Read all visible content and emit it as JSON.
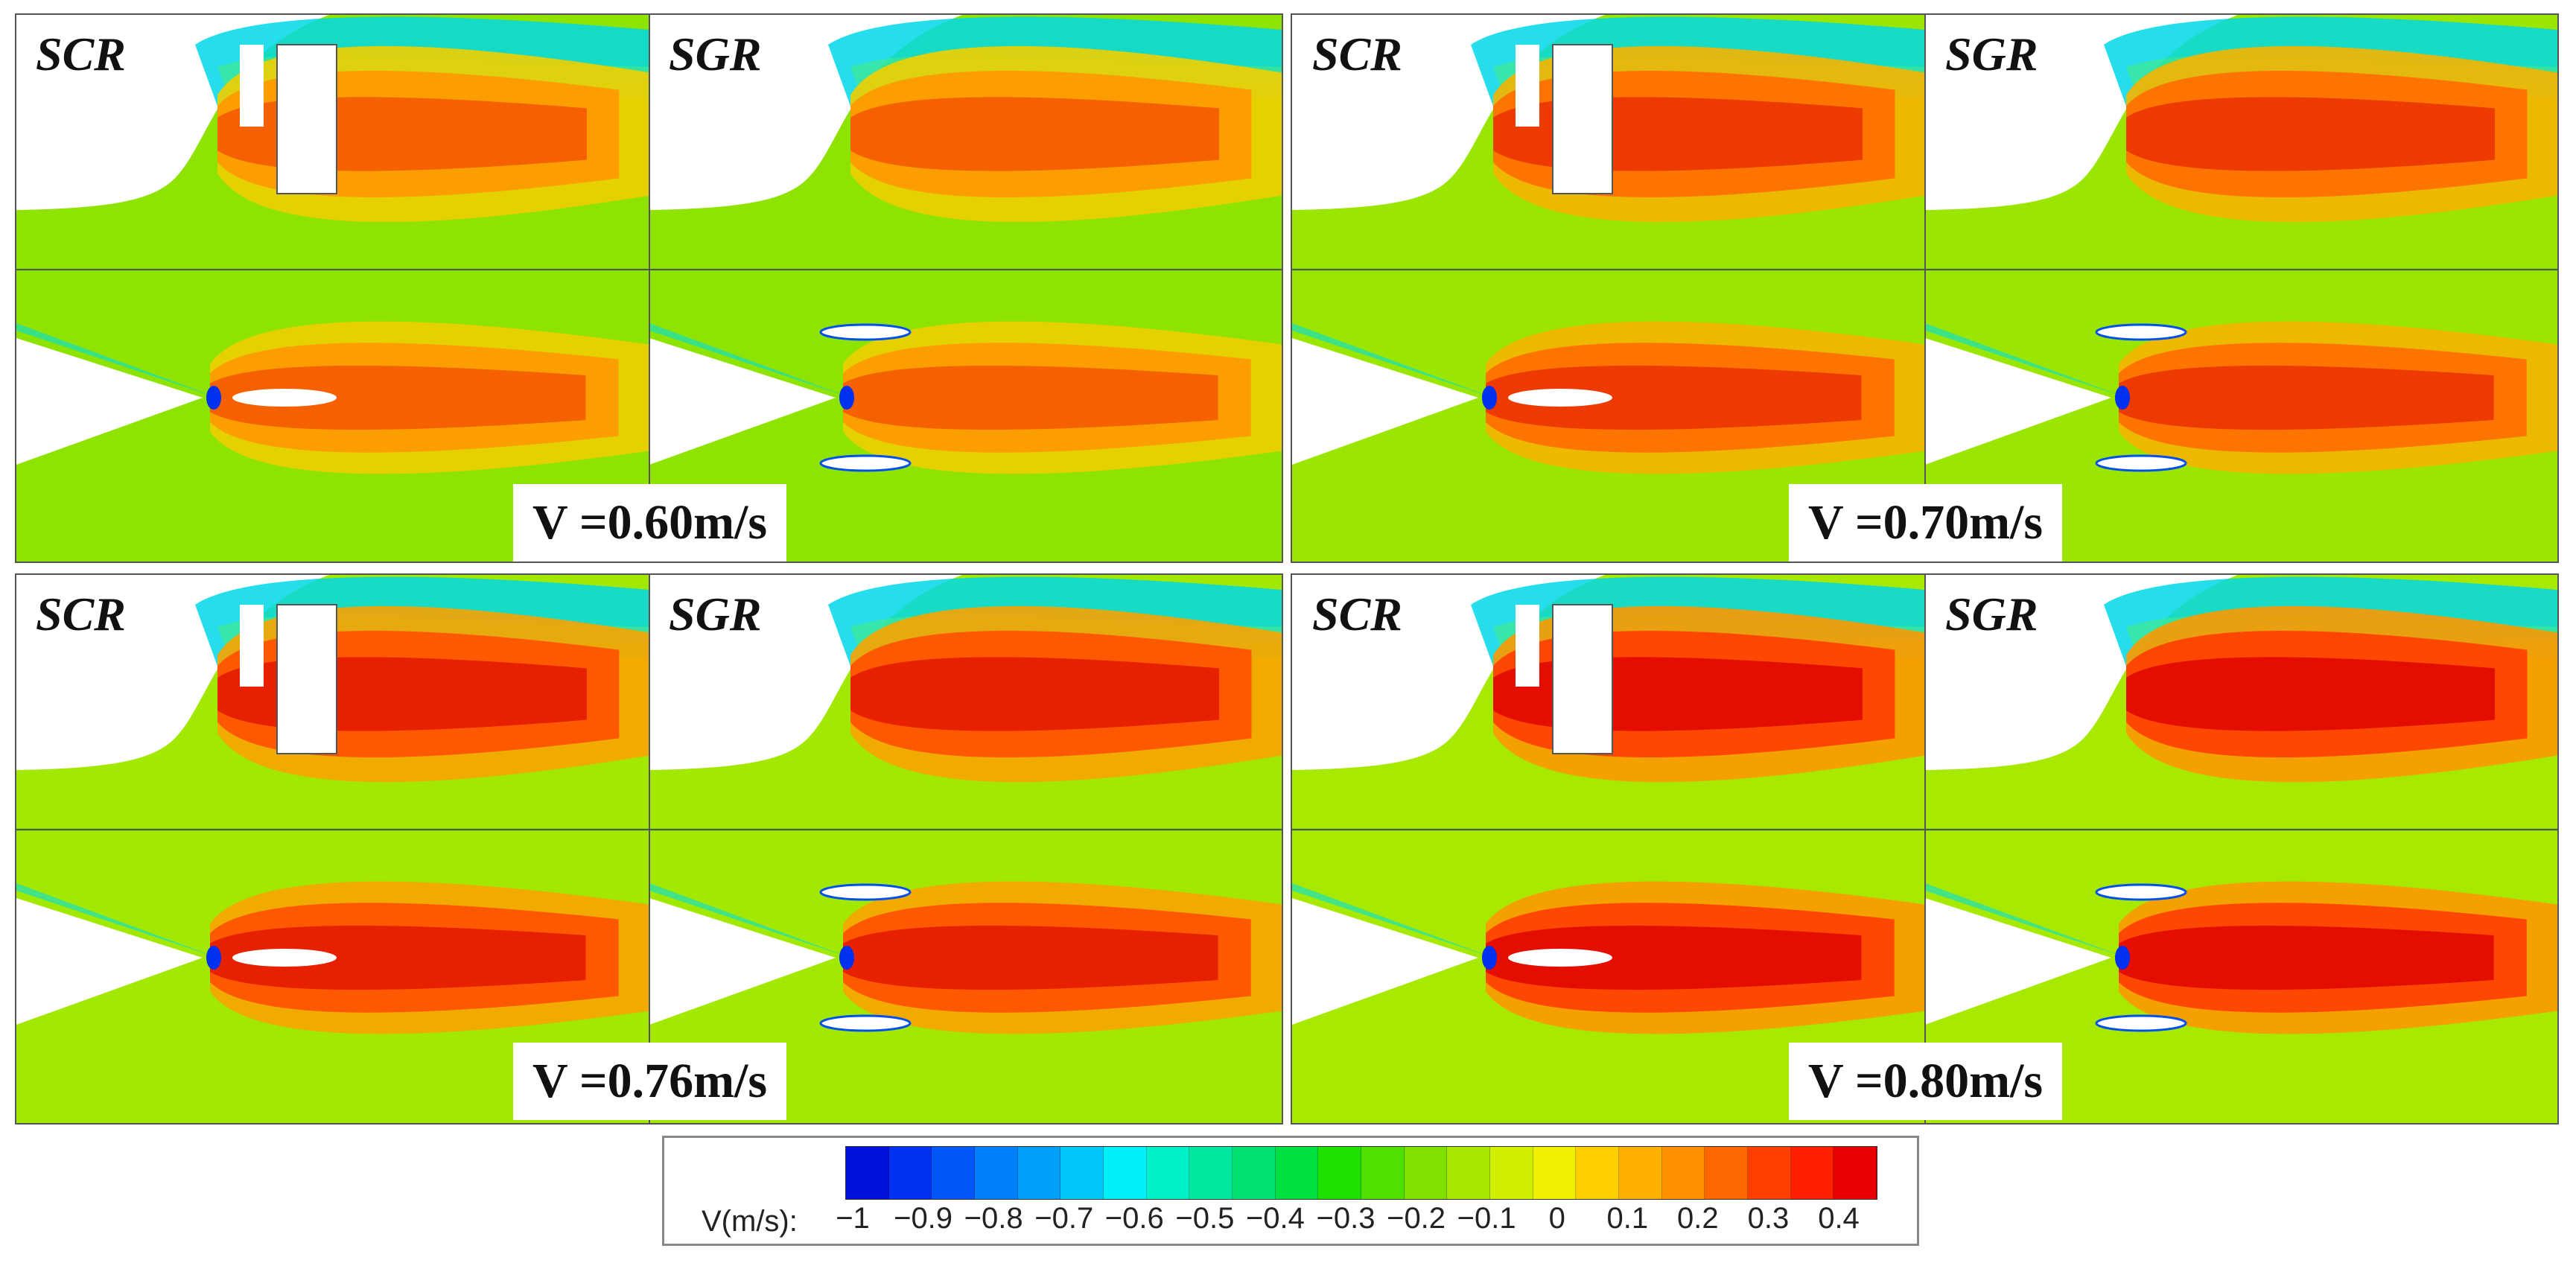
{
  "labels": {
    "scr": "SCR",
    "sgr": "SGR"
  },
  "groups": [
    {
      "velocity": "V =0.60m/s",
      "intensity": 0.35
    },
    {
      "velocity": "V =0.70m/s",
      "intensity": 0.62
    },
    {
      "velocity": "V =0.76m/s",
      "intensity": 0.8
    },
    {
      "velocity": "V =0.80m/s",
      "intensity": 0.92
    }
  ],
  "legend": {
    "title": "V(m/s):",
    "ticks": [
      "−1",
      "−0.9",
      "−0.8",
      "−0.7",
      "−0.6",
      "−0.5",
      "−0.4",
      "−0.3",
      "−0.2",
      "−0.1",
      "0",
      "0.1",
      "0.2",
      "0.3",
      "0.4"
    ],
    "colors": [
      "#0010d8",
      "#0030f0",
      "#0058f8",
      "#0080f8",
      "#00a0f8",
      "#00c8f8",
      "#00f0f8",
      "#00f0c8",
      "#00e8a0",
      "#00e070",
      "#00e040",
      "#20e000",
      "#50e000",
      "#80e000",
      "#a8e800",
      "#d0f000",
      "#f0f000",
      "#ffd000",
      "#ffb000",
      "#ff9000",
      "#ff6800",
      "#ff4000",
      "#ff2000",
      "#e80000"
    ]
  }
}
